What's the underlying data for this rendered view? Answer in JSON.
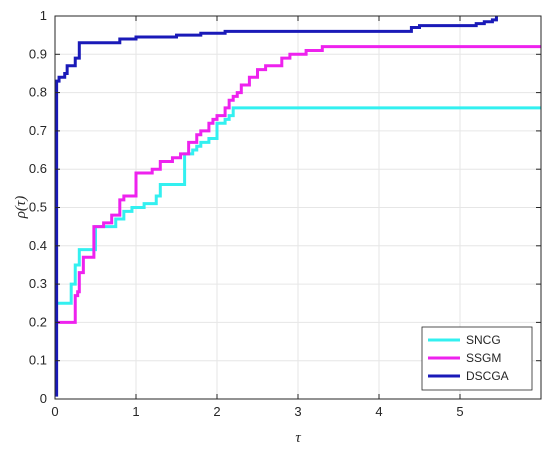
{
  "chart_data": {
    "type": "line",
    "step": true,
    "title": "",
    "xlabel": "τ",
    "ylabel": "ρ(τ)",
    "xlim": [
      0,
      6
    ],
    "ylim": [
      0,
      1
    ],
    "xticks": [
      0,
      1,
      2,
      3,
      4,
      5
    ],
    "xtick_labels": [
      "0",
      "1",
      "2",
      "3",
      "4",
      "5"
    ],
    "yticks": [
      0,
      0.1,
      0.2,
      0.3,
      0.4,
      0.5,
      0.6,
      0.7,
      0.8,
      0.9,
      1
    ],
    "ytick_labels": [
      "0",
      "0.1",
      "0.2",
      "0.3",
      "0.4",
      "0.5",
      "0.6",
      "0.7",
      "0.8",
      "0.9",
      "1"
    ],
    "grid": true,
    "legend_position": "bottom-right",
    "series": [
      {
        "name": "SNCG",
        "color": "#33F0F0",
        "x": [
          0,
          0.15,
          0.2,
          0.25,
          0.3,
          0.5,
          0.65,
          0.75,
          0.85,
          0.95,
          1.1,
          1.25,
          1.3,
          1.6,
          1.7,
          1.75,
          1.8,
          1.9,
          2.0,
          2.1,
          2.15,
          2.2,
          6
        ],
        "y": [
          0.25,
          0.25,
          0.3,
          0.35,
          0.39,
          0.45,
          0.45,
          0.47,
          0.49,
          0.5,
          0.51,
          0.53,
          0.56,
          0.64,
          0.65,
          0.66,
          0.67,
          0.68,
          0.72,
          0.73,
          0.74,
          0.76,
          0.76
        ]
      },
      {
        "name": "SSGM",
        "color": "#EE22EE",
        "x": [
          0,
          0.25,
          0.28,
          0.3,
          0.35,
          0.48,
          0.55,
          0.6,
          0.7,
          0.8,
          0.85,
          1.0,
          1.2,
          1.3,
          1.45,
          1.55,
          1.65,
          1.75,
          1.8,
          1.9,
          1.95,
          2.0,
          2.1,
          2.15,
          2.2,
          2.25,
          2.3,
          2.4,
          2.5,
          2.6,
          2.8,
          2.9,
          3.0,
          3.1,
          3.2,
          3.3,
          4.0,
          5.0,
          6
        ],
        "y": [
          0.2,
          0.27,
          0.28,
          0.33,
          0.37,
          0.45,
          0.45,
          0.46,
          0.48,
          0.52,
          0.53,
          0.59,
          0.6,
          0.62,
          0.63,
          0.64,
          0.67,
          0.69,
          0.7,
          0.72,
          0.73,
          0.74,
          0.76,
          0.78,
          0.79,
          0.8,
          0.82,
          0.84,
          0.86,
          0.87,
          0.89,
          0.9,
          0.9,
          0.91,
          0.91,
          0.92,
          0.92,
          0.92,
          0.92
        ]
      },
      {
        "name": "DSCGA",
        "color": "#1A1AB8",
        "x": [
          0,
          0.02,
          0.05,
          0.12,
          0.15,
          0.25,
          0.3,
          0.8,
          1.0,
          1.5,
          1.8,
          2.1,
          3.5,
          4.4,
          4.5,
          5.0,
          5.2,
          5.3,
          5.4,
          5.45
        ],
        "y": [
          0.01,
          0.83,
          0.84,
          0.85,
          0.87,
          0.89,
          0.93,
          0.94,
          0.945,
          0.95,
          0.955,
          0.96,
          0.96,
          0.97,
          0.975,
          0.975,
          0.98,
          0.985,
          0.99,
          1.0
        ]
      }
    ]
  }
}
